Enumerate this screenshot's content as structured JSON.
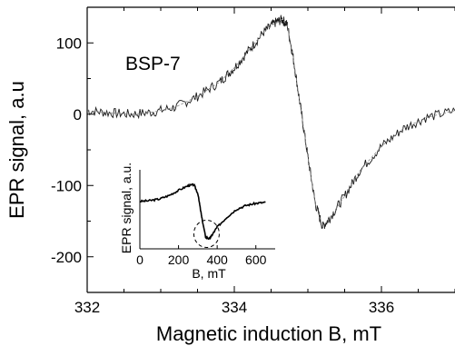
{
  "chart_data": [
    {
      "type": "line",
      "title": "",
      "xlabel": "Magnetic induction B, mT",
      "ylabel": "EPR signal, a.u",
      "xlim": [
        332,
        337
      ],
      "ylim": [
        -250,
        150
      ],
      "x_ticks": [
        332,
        334,
        336
      ],
      "y_ticks": [
        100,
        0,
        -100,
        -200
      ],
      "x_tick_labels": [
        "332",
        "334",
        "336"
      ],
      "y_tick_labels": [
        "100",
        "0",
        "-100",
        "-200"
      ],
      "annotation": "BSP-7",
      "grid": false,
      "series": [
        {
          "x": [
            332.0,
            332.3,
            332.6,
            332.9,
            333.2,
            333.5,
            333.8,
            334.0,
            334.2,
            334.4,
            334.55,
            334.65,
            334.72,
            334.8,
            334.9,
            335.0,
            335.1,
            335.2,
            335.3,
            335.5,
            335.7,
            336.0,
            336.3,
            336.6,
            337.0
          ],
          "y": [
            5,
            2,
            0,
            3,
            10,
            25,
            45,
            65,
            90,
            115,
            128,
            133,
            125,
            80,
            10,
            -60,
            -125,
            -158,
            -145,
            -115,
            -80,
            -45,
            -20,
            -5,
            5
          ]
        }
      ]
    },
    {
      "type": "line",
      "title": "",
      "xlabel": "B, mT",
      "ylabel": "EPR signal, a.u.",
      "xlim": [
        0,
        700
      ],
      "ylim": [
        -1,
        1
      ],
      "x_ticks": [
        0,
        200,
        400,
        600
      ],
      "x_tick_labels": [
        "0",
        "200",
        "400",
        "600"
      ],
      "series": [
        {
          "x": [
            0,
            50,
            100,
            150,
            200,
            250,
            280,
            300,
            320,
            340,
            360,
            380,
            400,
            450,
            500,
            550,
            600,
            650
          ],
          "y": [
            0.2,
            0.22,
            0.26,
            0.35,
            0.48,
            0.6,
            0.62,
            0.4,
            -0.2,
            -0.7,
            -0.75,
            -0.6,
            -0.45,
            -0.2,
            0.0,
            0.1,
            0.15,
            0.18
          ]
        }
      ]
    }
  ]
}
